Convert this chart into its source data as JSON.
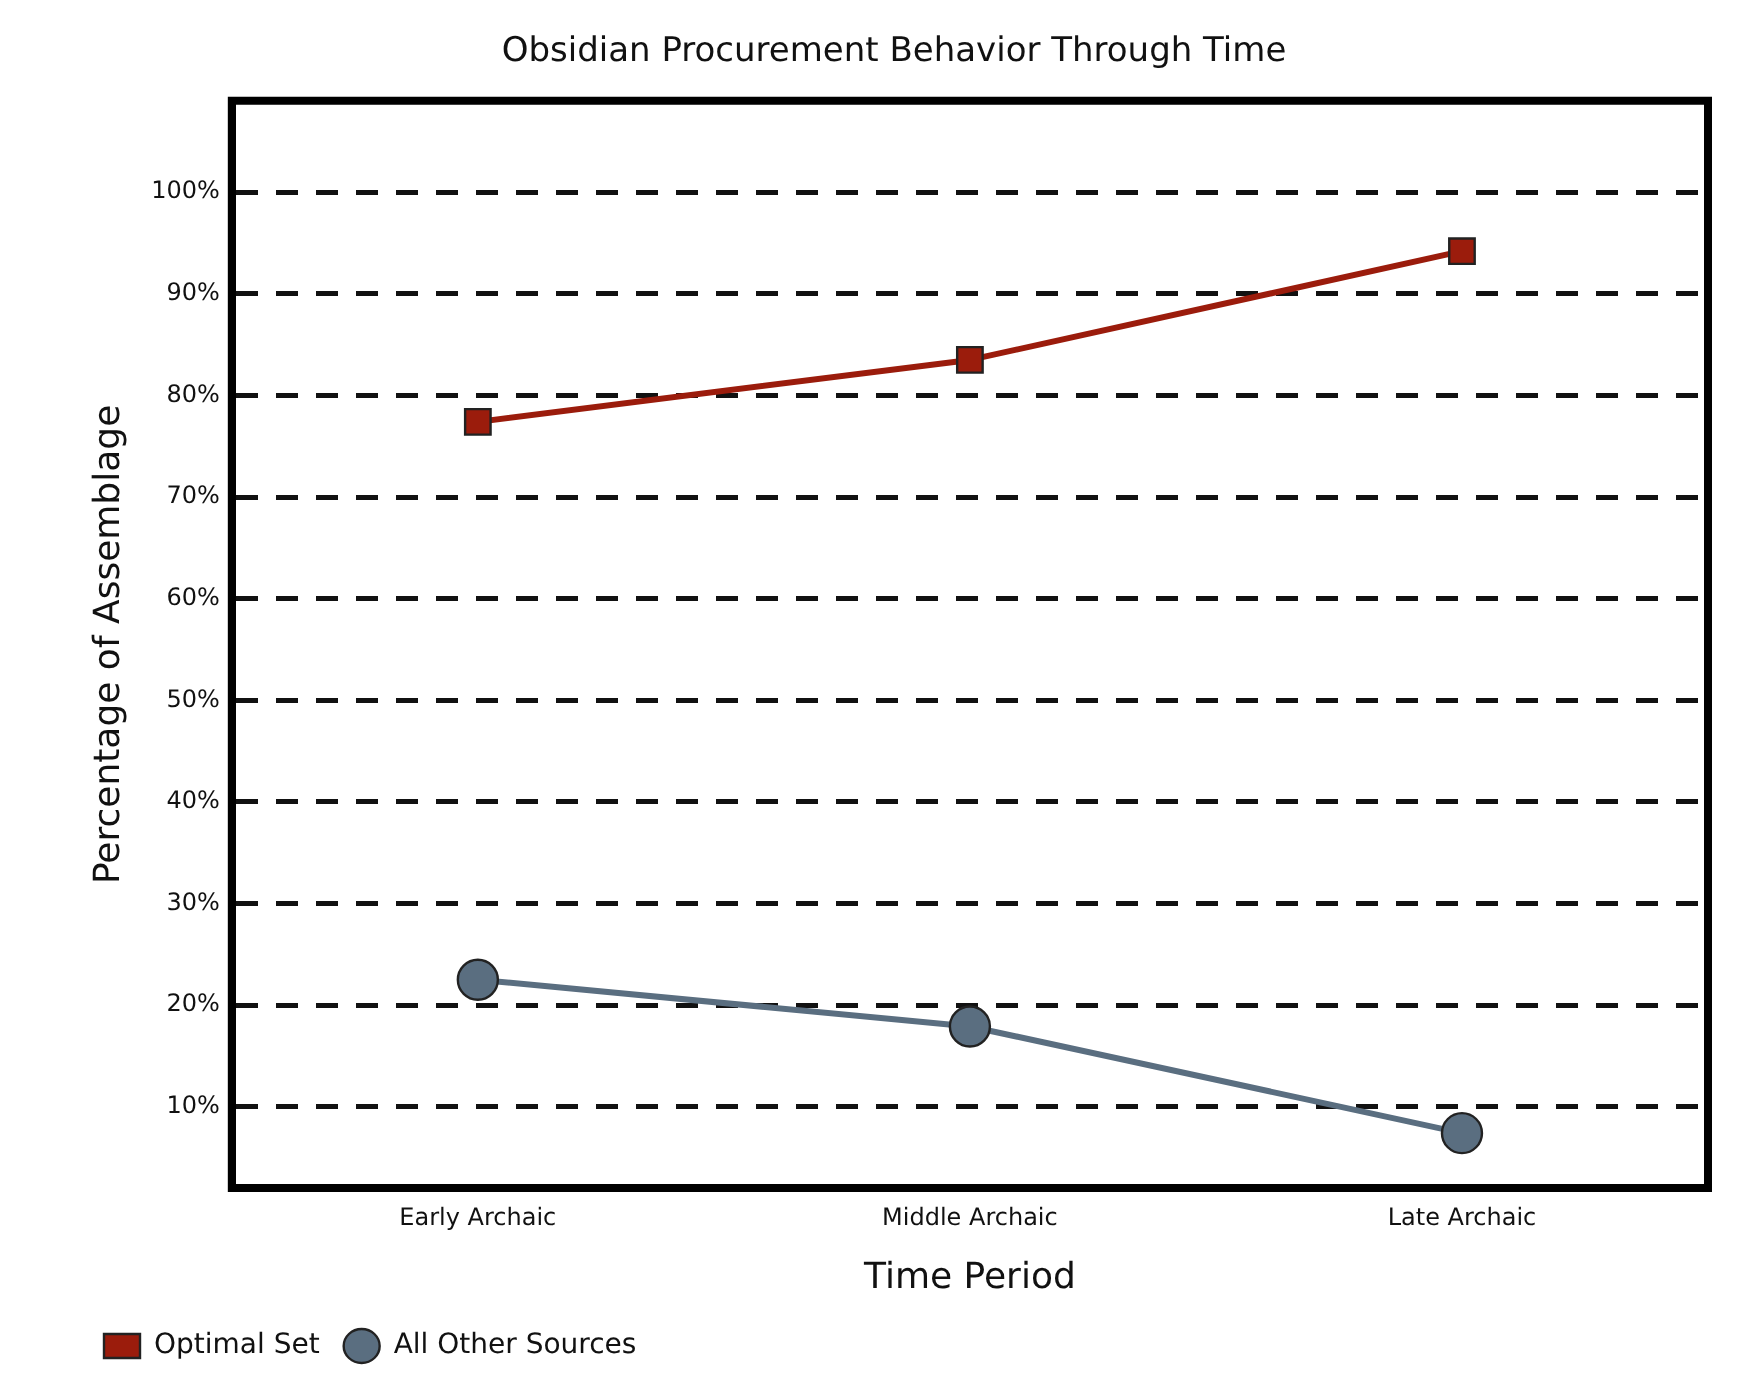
{
  "chart_data": {
    "type": "line",
    "title": "Obsidian Procurement Behavior Through Time",
    "xlabel": "Time Period",
    "ylabel": "Percentage of Assemblage",
    "categories": [
      "Early Archaic",
      "Middle Archaic",
      "Late Archaic"
    ],
    "series": [
      {
        "name": "Optimal Set",
        "color": "#9b1c0c",
        "marker": "square",
        "values": [
          77.4,
          83.5,
          94.2
        ]
      },
      {
        "name": "All Other Sources",
        "color": "#5a6e80",
        "marker": "circle",
        "values": [
          22.5,
          17.9,
          7.4
        ]
      }
    ],
    "ylim": [
      2,
      109
    ],
    "yticks": [
      {
        "value": 10,
        "label": "10%"
      },
      {
        "value": 20,
        "label": "20%"
      },
      {
        "value": 30,
        "label": "30%"
      },
      {
        "value": 40,
        "label": "40%"
      },
      {
        "value": 50,
        "label": "50%"
      },
      {
        "value": 60,
        "label": "60%"
      },
      {
        "value": 70,
        "label": "70%"
      },
      {
        "value": 80,
        "label": "80%"
      },
      {
        "value": 90,
        "label": "90%"
      },
      {
        "value": 100,
        "label": "100%"
      }
    ],
    "grid": "y",
    "legend": "bottom left",
    "line_style": "solid"
  }
}
